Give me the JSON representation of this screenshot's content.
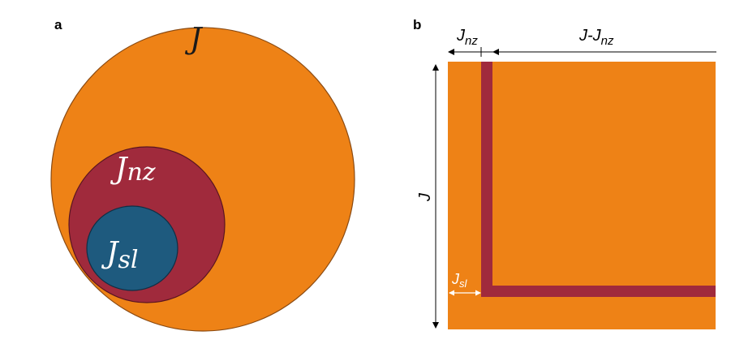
{
  "panels": {
    "a": {
      "label": "a",
      "outer_set": {
        "main": "J",
        "sub": ""
      },
      "middle_set": {
        "main": "J",
        "sub": "nz"
      },
      "inner_set": {
        "main": "J",
        "sub": "sl"
      }
    },
    "b": {
      "label": "b",
      "top_left_dim": {
        "main": "J",
        "sub": "nz"
      },
      "top_right_dim": {
        "pre": "J-",
        "main": "J",
        "sub": "nz"
      },
      "left_dim": {
        "main": "J"
      },
      "bottom_dim": {
        "main": "J",
        "sub": "sl"
      }
    }
  },
  "colors": {
    "orange": "#EE8216",
    "crimson": "#A02A3C",
    "teal": "#1E5A7E",
    "outline": "#8A4A12"
  }
}
